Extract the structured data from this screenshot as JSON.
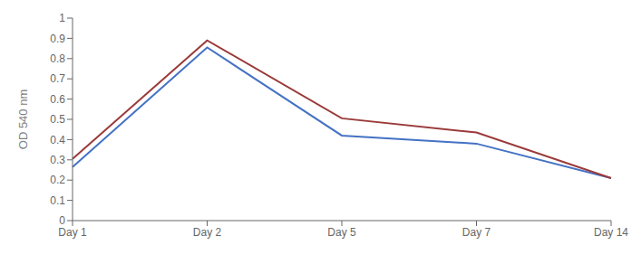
{
  "chart_data": {
    "type": "line",
    "categories": [
      "Day 1",
      "Day 2",
      "Day 5",
      "Day 7",
      "Day 14"
    ],
    "series": [
      {
        "color": "#4472C4",
        "values": [
          0.265,
          0.855,
          0.42,
          0.38,
          0.21
        ]
      },
      {
        "color": "#9B3A3A",
        "values": [
          0.305,
          0.89,
          0.505,
          0.435,
          0.21
        ]
      }
    ],
    "ylabel": "OD 540 nm",
    "ylim": [
      0,
      1
    ],
    "yticks": [
      0,
      0.1,
      0.2,
      0.3,
      0.4,
      0.5,
      0.6,
      0.7,
      0.8,
      0.9,
      1
    ],
    "grid": false
  }
}
